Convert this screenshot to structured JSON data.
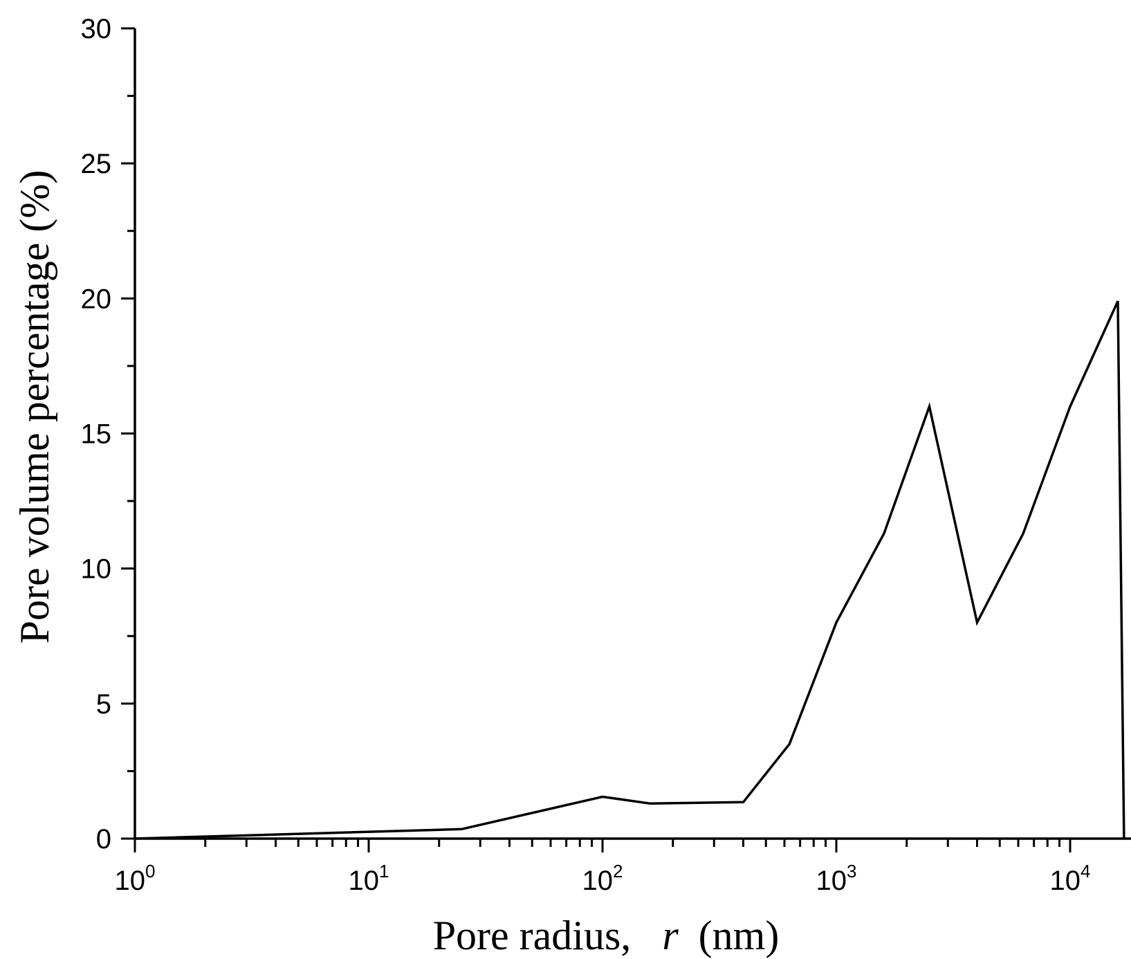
{
  "chart_data": {
    "type": "line",
    "xscale": "log",
    "xlim": [
      1,
      18000
    ],
    "ylim": [
      0,
      30
    ],
    "grid": false,
    "legend": "none",
    "xlabel_parts": [
      "Pore radius,",
      "r",
      "(nm)"
    ],
    "ylabel": "Pore volume percentage (%)",
    "x_ticks": [
      {
        "value": 1,
        "base": "10",
        "exp": "0"
      },
      {
        "value": 10,
        "base": "10",
        "exp": "1"
      },
      {
        "value": 100,
        "base": "10",
        "exp": "2"
      },
      {
        "value": 1000,
        "base": "10",
        "exp": "3"
      },
      {
        "value": 10000,
        "base": "10",
        "exp": "4"
      }
    ],
    "y_ticks": [
      {
        "value": 0,
        "label": "0"
      },
      {
        "value": 5,
        "label": "5"
      },
      {
        "value": 10,
        "label": "10"
      },
      {
        "value": 15,
        "label": "15"
      },
      {
        "value": 20,
        "label": "20"
      },
      {
        "value": 25,
        "label": "25"
      },
      {
        "value": 30,
        "label": "30"
      }
    ],
    "series": [
      {
        "color": "#000000",
        "x": [
          1,
          25,
          100,
          160,
          400,
          630,
          1000,
          1600,
          2500,
          4000,
          6300,
          10000,
          16000,
          17000
        ],
        "y": [
          0.0,
          0.35,
          1.55,
          1.3,
          1.35,
          3.5,
          8.0,
          11.3,
          16.0,
          8.0,
          11.3,
          16.0,
          19.9,
          0.0
        ]
      }
    ]
  }
}
